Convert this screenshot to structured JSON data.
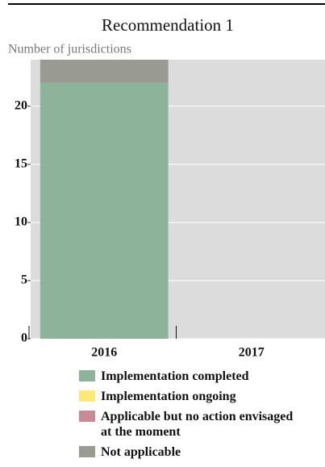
{
  "chart_data": {
    "type": "stacked-bar",
    "title": "Recommendation 1",
    "y_label": "Number of jurisdictions",
    "categories": [
      "2016",
      "2017"
    ],
    "series": [
      {
        "name": "Implementation completed",
        "color": "#8db39a",
        "values": [
          22,
          0
        ]
      },
      {
        "name": "Implementation ongoing",
        "color": "#fde97a",
        "values": [
          0,
          0
        ]
      },
      {
        "name": "Applicable but no action envisaged at the moment",
        "color": "#c98a96",
        "values": [
          0,
          0
        ]
      },
      {
        "name": "Not applicable",
        "color": "#999b93",
        "values": [
          2,
          0
        ]
      }
    ],
    "ylim": [
      0,
      24
    ],
    "yticks": [
      0,
      5,
      10,
      15,
      20
    ],
    "grid": true
  }
}
